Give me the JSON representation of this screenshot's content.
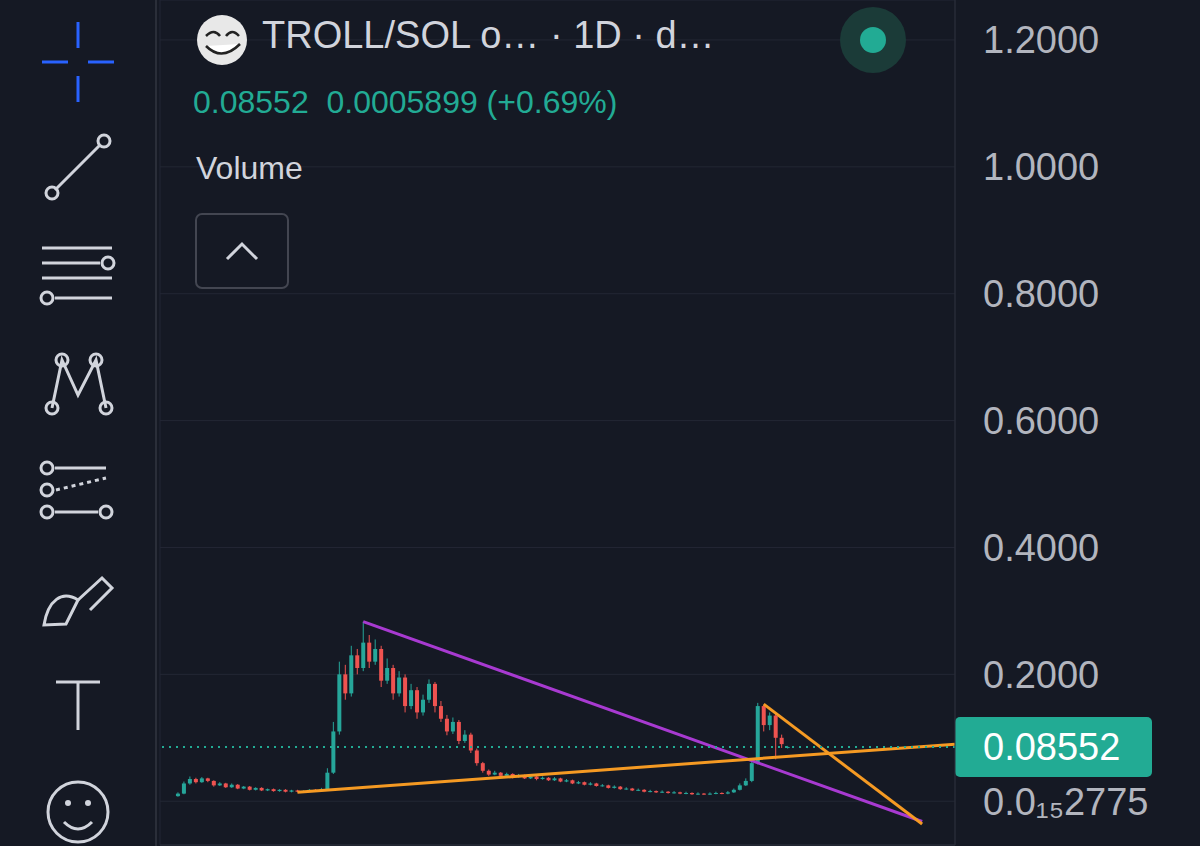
{
  "chart_data": {
    "type": "candlestick",
    "title": "TROLL/SOL o…  · 1D · d…",
    "subtitle": "0.08552  0.0005899 (+0.69%)",
    "indicators": [
      "Volume"
    ],
    "colors": {
      "up": "#26a69a",
      "down": "#ef5350"
    },
    "grid": true,
    "tick_labels": "y",
    "xlim": [
      -3,
      130
    ],
    "xticks": [
      3,
      65,
      110
    ],
    "ylim": [
      -0.069,
      1.263
    ],
    "yticks": [
      {
        "value": 2.775e-16,
        "label": "0.0₁₅2775"
      },
      {
        "value": 0.2,
        "label": "0.2000"
      },
      {
        "value": 0.4,
        "label": "0.4000"
      },
      {
        "value": 0.6,
        "label": "0.6000"
      },
      {
        "value": 0.8,
        "label": "0.8000"
      },
      {
        "value": 1.0,
        "label": "1.0000"
      },
      {
        "value": 1.2,
        "label": "1.2000"
      }
    ],
    "last_price": {
      "value": 0.08552,
      "label": "0.08552",
      "color": "#22ab94"
    },
    "trendlines": [
      {
        "color": "#a83ad1",
        "points": [
          [
            31,
            0.283
          ],
          [
            124.5,
            -0.032
          ]
        ]
      },
      {
        "color": "#f59a23",
        "points": [
          [
            20,
            0.014
          ],
          [
            130,
            0.09
          ]
        ]
      },
      {
        "color": "#f59a23",
        "points": [
          [
            98,
            0.153
          ],
          [
            124.5,
            -0.036
          ]
        ]
      }
    ],
    "x": [
      0,
      1,
      2,
      3,
      4,
      5,
      6,
      7,
      8,
      9,
      10,
      11,
      12,
      13,
      14,
      15,
      16,
      17,
      18,
      19,
      20,
      21,
      22,
      23,
      24,
      25,
      26,
      27,
      28,
      29,
      30,
      31,
      32,
      33,
      34,
      35,
      36,
      37,
      38,
      39,
      40,
      41,
      42,
      43,
      44,
      45,
      46,
      47,
      48,
      49,
      50,
      51,
      52,
      53,
      54,
      55,
      56,
      57,
      58,
      59,
      60,
      61,
      62,
      63,
      64,
      65,
      66,
      67,
      68,
      69,
      70,
      71,
      72,
      73,
      74,
      75,
      76,
      77,
      78,
      79,
      80,
      81,
      82,
      83,
      84,
      85,
      86,
      87,
      88,
      89,
      90,
      91,
      92,
      93,
      94,
      95,
      96,
      97,
      98,
      99,
      100,
      101,
      102
    ],
    "ohlc": [
      [
        0.008,
        0.014,
        0.007,
        0.012
      ],
      [
        0.012,
        0.031,
        0.011,
        0.028
      ],
      [
        0.028,
        0.039,
        0.026,
        0.035
      ],
      [
        0.035,
        0.037,
        0.028,
        0.03
      ],
      [
        0.03,
        0.038,
        0.029,
        0.036
      ],
      [
        0.036,
        0.037,
        0.03,
        0.032
      ],
      [
        0.032,
        0.033,
        0.023,
        0.025
      ],
      [
        0.025,
        0.03,
        0.024,
        0.028
      ],
      [
        0.028,
        0.029,
        0.021,
        0.022
      ],
      [
        0.022,
        0.028,
        0.021,
        0.026
      ],
      [
        0.026,
        0.027,
        0.019,
        0.02
      ],
      [
        0.02,
        0.024,
        0.019,
        0.023
      ],
      [
        0.023,
        0.024,
        0.017,
        0.018
      ],
      [
        0.018,
        0.022,
        0.017,
        0.021
      ],
      [
        0.021,
        0.022,
        0.016,
        0.017
      ],
      [
        0.017,
        0.02,
        0.016,
        0.019
      ],
      [
        0.019,
        0.02,
        0.015,
        0.016
      ],
      [
        0.016,
        0.019,
        0.015,
        0.018
      ],
      [
        0.018,
        0.019,
        0.014,
        0.015
      ],
      [
        0.015,
        0.018,
        0.014,
        0.017
      ],
      [
        0.017,
        0.018,
        0.014,
        0.015
      ],
      [
        0.015,
        0.017,
        0.014,
        0.016
      ],
      [
        0.016,
        0.019,
        0.015,
        0.018
      ],
      [
        0.018,
        0.019,
        0.015,
        0.016
      ],
      [
        0.016,
        0.021,
        0.015,
        0.019
      ],
      [
        0.019,
        0.052,
        0.018,
        0.045
      ],
      [
        0.045,
        0.125,
        0.043,
        0.11
      ],
      [
        0.11,
        0.22,
        0.105,
        0.2
      ],
      [
        0.2,
        0.215,
        0.16,
        0.17
      ],
      [
        0.17,
        0.245,
        0.165,
        0.23
      ],
      [
        0.23,
        0.24,
        0.2,
        0.21
      ],
      [
        0.21,
        0.283,
        0.205,
        0.25
      ],
      [
        0.25,
        0.262,
        0.21,
        0.22
      ],
      [
        0.22,
        0.255,
        0.215,
        0.24
      ],
      [
        0.24,
        0.245,
        0.18,
        0.19
      ],
      [
        0.19,
        0.225,
        0.185,
        0.21
      ],
      [
        0.21,
        0.215,
        0.16,
        0.17
      ],
      [
        0.17,
        0.205,
        0.165,
        0.195
      ],
      [
        0.195,
        0.2,
        0.14,
        0.15
      ],
      [
        0.15,
        0.185,
        0.145,
        0.175
      ],
      [
        0.175,
        0.18,
        0.13,
        0.14
      ],
      [
        0.14,
        0.168,
        0.135,
        0.16
      ],
      [
        0.16,
        0.192,
        0.155,
        0.185
      ],
      [
        0.185,
        0.188,
        0.14,
        0.15
      ],
      [
        0.15,
        0.158,
        0.125,
        0.13
      ],
      [
        0.13,
        0.136,
        0.104,
        0.11
      ],
      [
        0.11,
        0.132,
        0.106,
        0.125
      ],
      [
        0.125,
        0.128,
        0.09,
        0.095
      ],
      [
        0.095,
        0.112,
        0.092,
        0.105
      ],
      [
        0.105,
        0.108,
        0.076,
        0.08
      ],
      [
        0.08,
        0.083,
        0.056,
        0.06
      ],
      [
        0.06,
        0.062,
        0.045,
        0.048
      ],
      [
        0.048,
        0.05,
        0.04,
        0.042
      ],
      [
        0.042,
        0.048,
        0.041,
        0.045
      ],
      [
        0.045,
        0.046,
        0.038,
        0.04
      ],
      [
        0.04,
        0.045,
        0.039,
        0.043
      ],
      [
        0.043,
        0.044,
        0.036,
        0.038
      ],
      [
        0.038,
        0.043,
        0.037,
        0.041
      ],
      [
        0.041,
        0.042,
        0.035,
        0.036
      ],
      [
        0.036,
        0.041,
        0.035,
        0.039
      ],
      [
        0.039,
        0.04,
        0.033,
        0.035
      ],
      [
        0.035,
        0.039,
        0.034,
        0.037
      ],
      [
        0.037,
        0.038,
        0.032,
        0.033
      ],
      [
        0.033,
        0.038,
        0.032,
        0.036
      ],
      [
        0.036,
        0.037,
        0.03,
        0.031
      ],
      [
        0.031,
        0.035,
        0.03,
        0.033
      ],
      [
        0.033,
        0.034,
        0.027,
        0.028
      ],
      [
        0.028,
        0.032,
        0.027,
        0.03
      ],
      [
        0.03,
        0.031,
        0.025,
        0.026
      ],
      [
        0.026,
        0.03,
        0.025,
        0.028
      ],
      [
        0.028,
        0.029,
        0.023,
        0.024
      ],
      [
        0.024,
        0.027,
        0.023,
        0.025
      ],
      [
        0.025,
        0.026,
        0.02,
        0.021
      ],
      [
        0.021,
        0.025,
        0.02,
        0.023
      ],
      [
        0.023,
        0.024,
        0.018,
        0.019
      ],
      [
        0.019,
        0.022,
        0.018,
        0.02
      ],
      [
        0.02,
        0.021,
        0.016,
        0.017
      ],
      [
        0.017,
        0.02,
        0.016,
        0.018
      ],
      [
        0.018,
        0.019,
        0.014,
        0.015
      ],
      [
        0.015,
        0.018,
        0.014,
        0.016
      ],
      [
        0.016,
        0.017,
        0.013,
        0.014
      ],
      [
        0.014,
        0.017,
        0.013,
        0.015
      ],
      [
        0.015,
        0.016,
        0.012,
        0.013
      ],
      [
        0.013,
        0.016,
        0.012,
        0.014
      ],
      [
        0.014,
        0.015,
        0.011,
        0.012
      ],
      [
        0.012,
        0.015,
        0.011,
        0.013
      ],
      [
        0.013,
        0.014,
        0.01,
        0.011
      ],
      [
        0.011,
        0.014,
        0.01,
        0.012
      ],
      [
        0.012,
        0.013,
        0.01,
        0.011
      ],
      [
        0.011,
        0.014,
        0.01,
        0.012
      ],
      [
        0.012,
        0.015,
        0.011,
        0.013
      ],
      [
        0.013,
        0.014,
        0.011,
        0.012
      ],
      [
        0.012,
        0.016,
        0.011,
        0.014
      ],
      [
        0.014,
        0.02,
        0.013,
        0.018
      ],
      [
        0.018,
        0.028,
        0.017,
        0.025
      ],
      [
        0.025,
        0.036,
        0.024,
        0.032
      ],
      [
        0.032,
        0.068,
        0.03,
        0.06
      ],
      [
        0.06,
        0.155,
        0.058,
        0.15
      ],
      [
        0.15,
        0.152,
        0.11,
        0.12
      ],
      [
        0.12,
        0.14,
        0.112,
        0.135
      ],
      [
        0.135,
        0.138,
        0.066,
        0.1
      ],
      [
        0.1,
        0.105,
        0.084,
        0.09
      ],
      [
        0.08493,
        0.0872,
        0.083,
        0.08552
      ]
    ]
  }
}
